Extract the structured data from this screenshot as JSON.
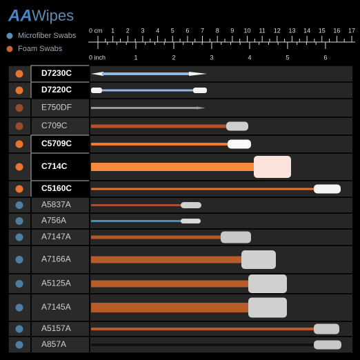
{
  "brand_mark": "AA",
  "brand_name": "Wipes",
  "legend": [
    {
      "label": "Microfiber Swabs",
      "color": "#5b8cb4"
    },
    {
      "label": "Foam Swabs",
      "color": "#c8643a"
    }
  ],
  "ruler": {
    "cm_label": "0 cm",
    "cm_ticks": [
      1,
      2,
      3,
      4,
      5,
      6,
      7,
      8,
      9,
      10,
      11,
      12,
      13,
      14,
      15,
      16,
      17
    ],
    "inch_label": "0 inch",
    "inch_ticks": [
      1,
      2,
      3,
      4,
      5,
      6
    ]
  },
  "rows": [
    {
      "label": "D7230C",
      "color": "#e8742e"
    },
    {
      "label": "D7220C",
      "color": "#e8742e"
    },
    {
      "label": "E750DF",
      "color": "#9c4a2e"
    },
    {
      "label": "C709C",
      "color": "#9c4a2e"
    },
    {
      "label": "C5709C",
      "color": "#e8742e"
    },
    {
      "label": "C714C",
      "color": "#e8742e"
    },
    {
      "label": "C5160C",
      "color": "#e8742e"
    },
    {
      "label": "A5837A",
      "color": "#4e7fa3"
    },
    {
      "label": "A756A",
      "color": "#4e7fa3"
    },
    {
      "label": "A7147A",
      "color": "#4e7fa3"
    },
    {
      "label": "A7166A",
      "color": "#4e7fa3"
    },
    {
      "label": "A5125A",
      "color": "#4e7fa3"
    },
    {
      "label": "A7145A",
      "color": "#4e7fa3"
    },
    {
      "label": "A5157A",
      "color": "#4e7fa3"
    },
    {
      "label": "A857A",
      "color": "#4e7fa3"
    }
  ]
}
